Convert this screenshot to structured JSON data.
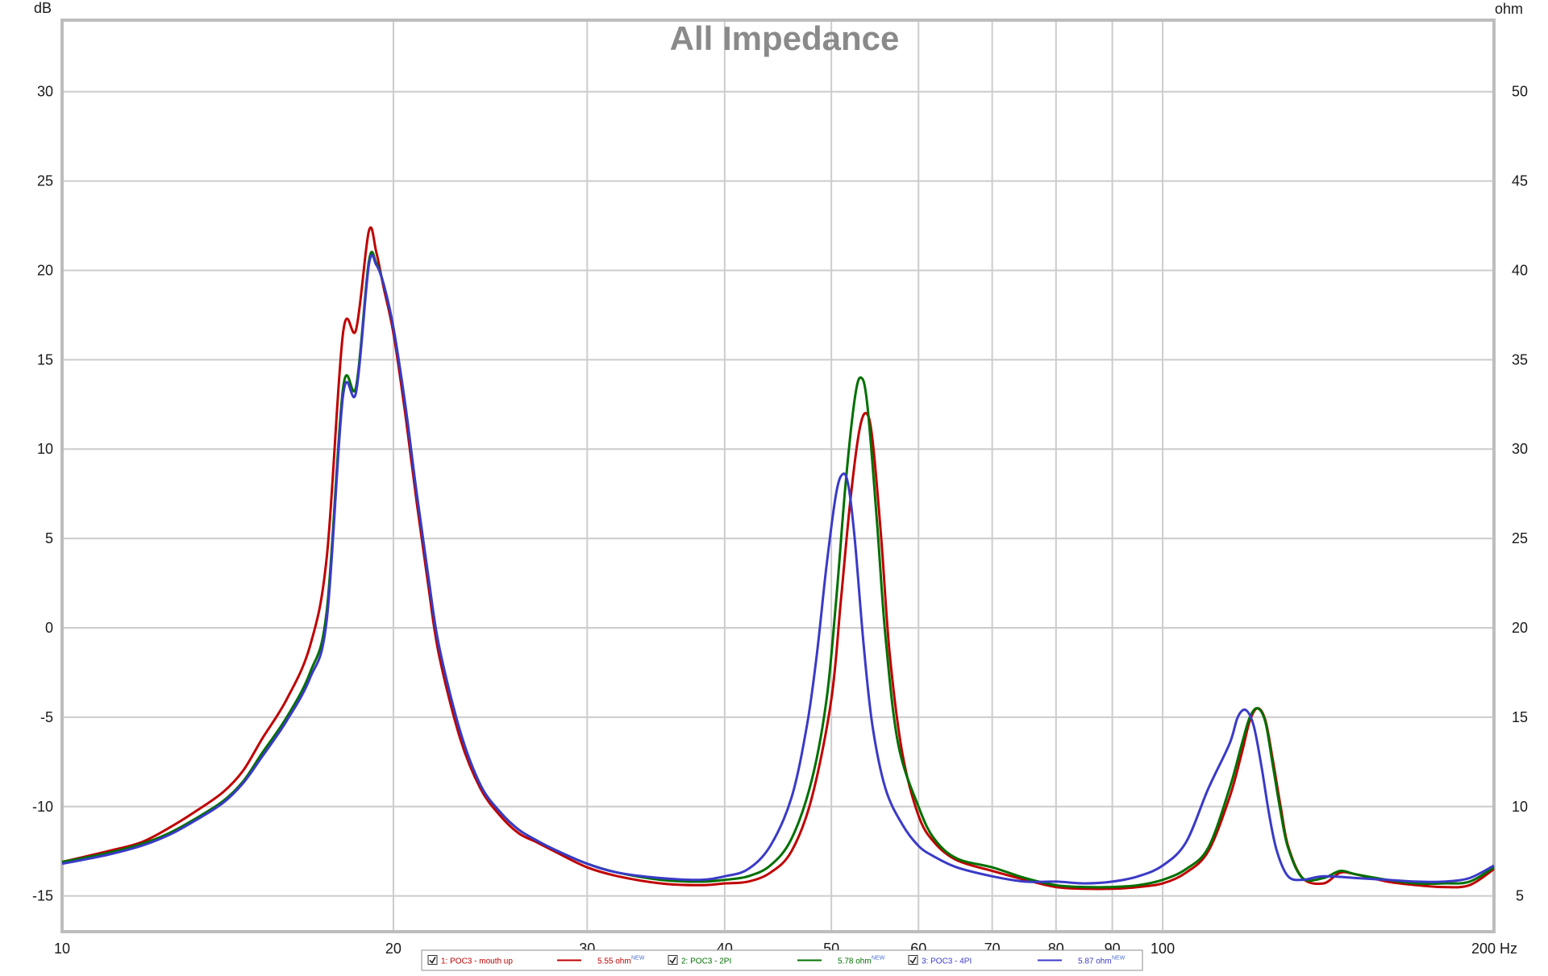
{
  "chart_data": {
    "type": "line",
    "title": "All Impedance",
    "x_unit": "Hz",
    "y_left_unit": "dB",
    "y_right_unit": "ohm",
    "x_scale": "log",
    "xlim": [
      10,
      200
    ],
    "ylim_left": [
      -17,
      34
    ],
    "ylim_right": [
      3,
      54
    ],
    "x_ticks": [
      10,
      20,
      30,
      40,
      50,
      60,
      70,
      80,
      90,
      100,
      200
    ],
    "x_tick_labels": [
      "10",
      "20",
      "30",
      "40",
      "50",
      "60",
      "70",
      "80",
      "90",
      "100",
      "200"
    ],
    "y_left_ticks": [
      -15,
      -10,
      -5,
      0,
      5,
      10,
      15,
      20,
      25,
      30
    ],
    "y_left_tick_labels": [
      "-15",
      "-10",
      "-5",
      "0",
      "5",
      "10",
      "15",
      "20",
      "25",
      "30"
    ],
    "y_right_ticks": [
      5,
      10,
      15,
      20,
      25,
      30,
      35,
      40,
      45,
      50
    ],
    "y_right_tick_labels": [
      "5",
      "10",
      "15",
      "20",
      "25",
      "30",
      "35",
      "40",
      "45",
      "50"
    ],
    "grid": true,
    "legend_placement": "bottom-center",
    "series": [
      {
        "name": "1: POC3 - mouth up",
        "value_label": "5.55 ohm",
        "badge": "NEW",
        "color": "#c00000",
        "x": [
          10,
          11,
          11.8,
          12.5,
          13.2,
          14,
          14.6,
          15.2,
          16,
          16.8,
          17.4,
          18,
          18.5,
          19,
          19.3,
          19.6,
          20,
          20.5,
          21,
          21.5,
          22,
          23,
          24,
          25,
          26,
          27,
          28,
          30,
          32,
          35,
          38,
          40,
          42,
          44,
          46,
          48,
          50,
          51,
          52,
          53,
          53.8,
          54.5,
          55.5,
          56.5,
          58,
          60,
          62,
          65,
          70,
          75,
          80,
          85,
          90,
          95,
          100,
          105,
          110,
          115,
          118,
          120,
          122,
          124,
          126,
          128,
          130,
          134,
          140,
          145,
          150,
          160,
          170,
          180,
          190,
          200
        ],
        "y": [
          -13.1,
          -12.5,
          -12.0,
          -11.2,
          -10.3,
          -9.2,
          -8.0,
          -6.2,
          -4.0,
          -1.0,
          4.0,
          16.5,
          16.7,
          22.2,
          21.0,
          19.0,
          16.5,
          12.0,
          7.0,
          2.5,
          -1.5,
          -6.2,
          -9.0,
          -10.5,
          -11.5,
          -12.0,
          -12.5,
          -13.4,
          -13.9,
          -14.3,
          -14.4,
          -14.3,
          -14.2,
          -13.7,
          -12.5,
          -9.5,
          -4.0,
          1.5,
          7.0,
          11.0,
          12.0,
          10.5,
          5.0,
          -1.5,
          -7.0,
          -10.5,
          -12.0,
          -13.0,
          -13.6,
          -14.1,
          -14.5,
          -14.6,
          -14.6,
          -14.5,
          -14.3,
          -13.7,
          -12.5,
          -9.5,
          -7.0,
          -5.2,
          -4.5,
          -5.2,
          -7.5,
          -10.0,
          -12.2,
          -14.0,
          -14.3,
          -13.7,
          -13.8,
          -14.2,
          -14.4,
          -14.5,
          -14.4,
          -13.5
        ]
      },
      {
        "name": "2: POC3 - 2PI",
        "value_label": "5.78 ohm",
        "badge": "NEW",
        "color": "#007000",
        "x": [
          10,
          11,
          11.8,
          12.5,
          13.2,
          14,
          14.6,
          15.2,
          16,
          16.8,
          17.4,
          18,
          18.5,
          19,
          19.3,
          19.6,
          20,
          20.5,
          21,
          21.5,
          22,
          23,
          24,
          25,
          26,
          27,
          28,
          30,
          32,
          35,
          38,
          40,
          42,
          44,
          46,
          48,
          49.5,
          50.5,
          51.5,
          52.5,
          53.2,
          53.9,
          55,
          56,
          57.5,
          60,
          62,
          65,
          70,
          75,
          80,
          85,
          90,
          95,
          100,
          105,
          110,
          115,
          118,
          120,
          122,
          124,
          126,
          128,
          130,
          134,
          140,
          145,
          150,
          160,
          170,
          180,
          190,
          200
        ],
        "y": [
          -13.1,
          -12.6,
          -12.1,
          -11.5,
          -10.7,
          -9.7,
          -8.6,
          -7.0,
          -5.0,
          -2.5,
          1.0,
          13.4,
          13.5,
          20.5,
          20.4,
          19.2,
          16.8,
          12.5,
          7.5,
          3.0,
          -1.0,
          -5.8,
          -8.8,
          -10.3,
          -11.3,
          -11.9,
          -12.4,
          -13.2,
          -13.7,
          -14.1,
          -14.2,
          -14.1,
          -13.9,
          -13.3,
          -11.8,
          -8.5,
          -4.0,
          1.5,
          8.0,
          12.8,
          14.0,
          12.5,
          6.0,
          -0.5,
          -6.5,
          -10.0,
          -11.8,
          -12.9,
          -13.4,
          -14.0,
          -14.4,
          -14.5,
          -14.5,
          -14.4,
          -14.1,
          -13.5,
          -12.3,
          -9.0,
          -6.5,
          -5.0,
          -4.5,
          -5.3,
          -7.8,
          -10.3,
          -12.3,
          -14.0,
          -14.0,
          -13.6,
          -13.8,
          -14.1,
          -14.3,
          -14.3,
          -14.2,
          -13.4
        ]
      },
      {
        "name": "3: POC3 - 4PI",
        "value_label": "5.87 ohm",
        "badge": "NEW",
        "color": "#3a3ac8",
        "x": [
          10,
          11,
          11.8,
          12.5,
          13.2,
          14,
          14.6,
          15.2,
          16,
          16.8,
          17.4,
          18,
          18.5,
          19,
          19.3,
          19.6,
          20,
          20.5,
          21,
          21.5,
          22,
          23,
          24,
          25,
          26,
          27,
          28,
          30,
          32,
          35,
          38,
          40,
          42,
          44,
          46,
          47.5,
          48.5,
          49.5,
          50.5,
          51.2,
          51.8,
          52.5,
          53.5,
          54.5,
          56,
          58,
          60,
          62,
          65,
          70,
          75,
          80,
          85,
          90,
          95,
          100,
          105,
          110,
          115,
          117,
          119,
          121,
          123,
          125,
          127,
          130,
          134,
          140,
          150,
          160,
          170,
          180,
          190,
          200
        ],
        "y": [
          -13.2,
          -12.7,
          -12.2,
          -11.6,
          -10.8,
          -9.8,
          -8.7,
          -7.2,
          -5.2,
          -2.8,
          0.5,
          13.0,
          13.2,
          20.3,
          20.3,
          19.2,
          16.8,
          12.5,
          7.5,
          3.0,
          -1.0,
          -5.8,
          -8.8,
          -10.3,
          -11.3,
          -11.9,
          -12.4,
          -13.2,
          -13.7,
          -14.0,
          -14.1,
          -13.9,
          -13.5,
          -12.2,
          -9.5,
          -5.5,
          -1.5,
          3.5,
          7.5,
          8.6,
          8.0,
          5.0,
          -1.0,
          -5.5,
          -9.0,
          -11.0,
          -12.2,
          -12.8,
          -13.4,
          -13.9,
          -14.2,
          -14.2,
          -14.3,
          -14.2,
          -13.9,
          -13.3,
          -12.0,
          -9.0,
          -6.5,
          -5.0,
          -4.6,
          -5.5,
          -7.8,
          -10.5,
          -12.5,
          -13.9,
          -14.1,
          -13.9,
          -14.0,
          -14.1,
          -14.2,
          -14.2,
          -14.0,
          -13.3
        ]
      }
    ]
  }
}
